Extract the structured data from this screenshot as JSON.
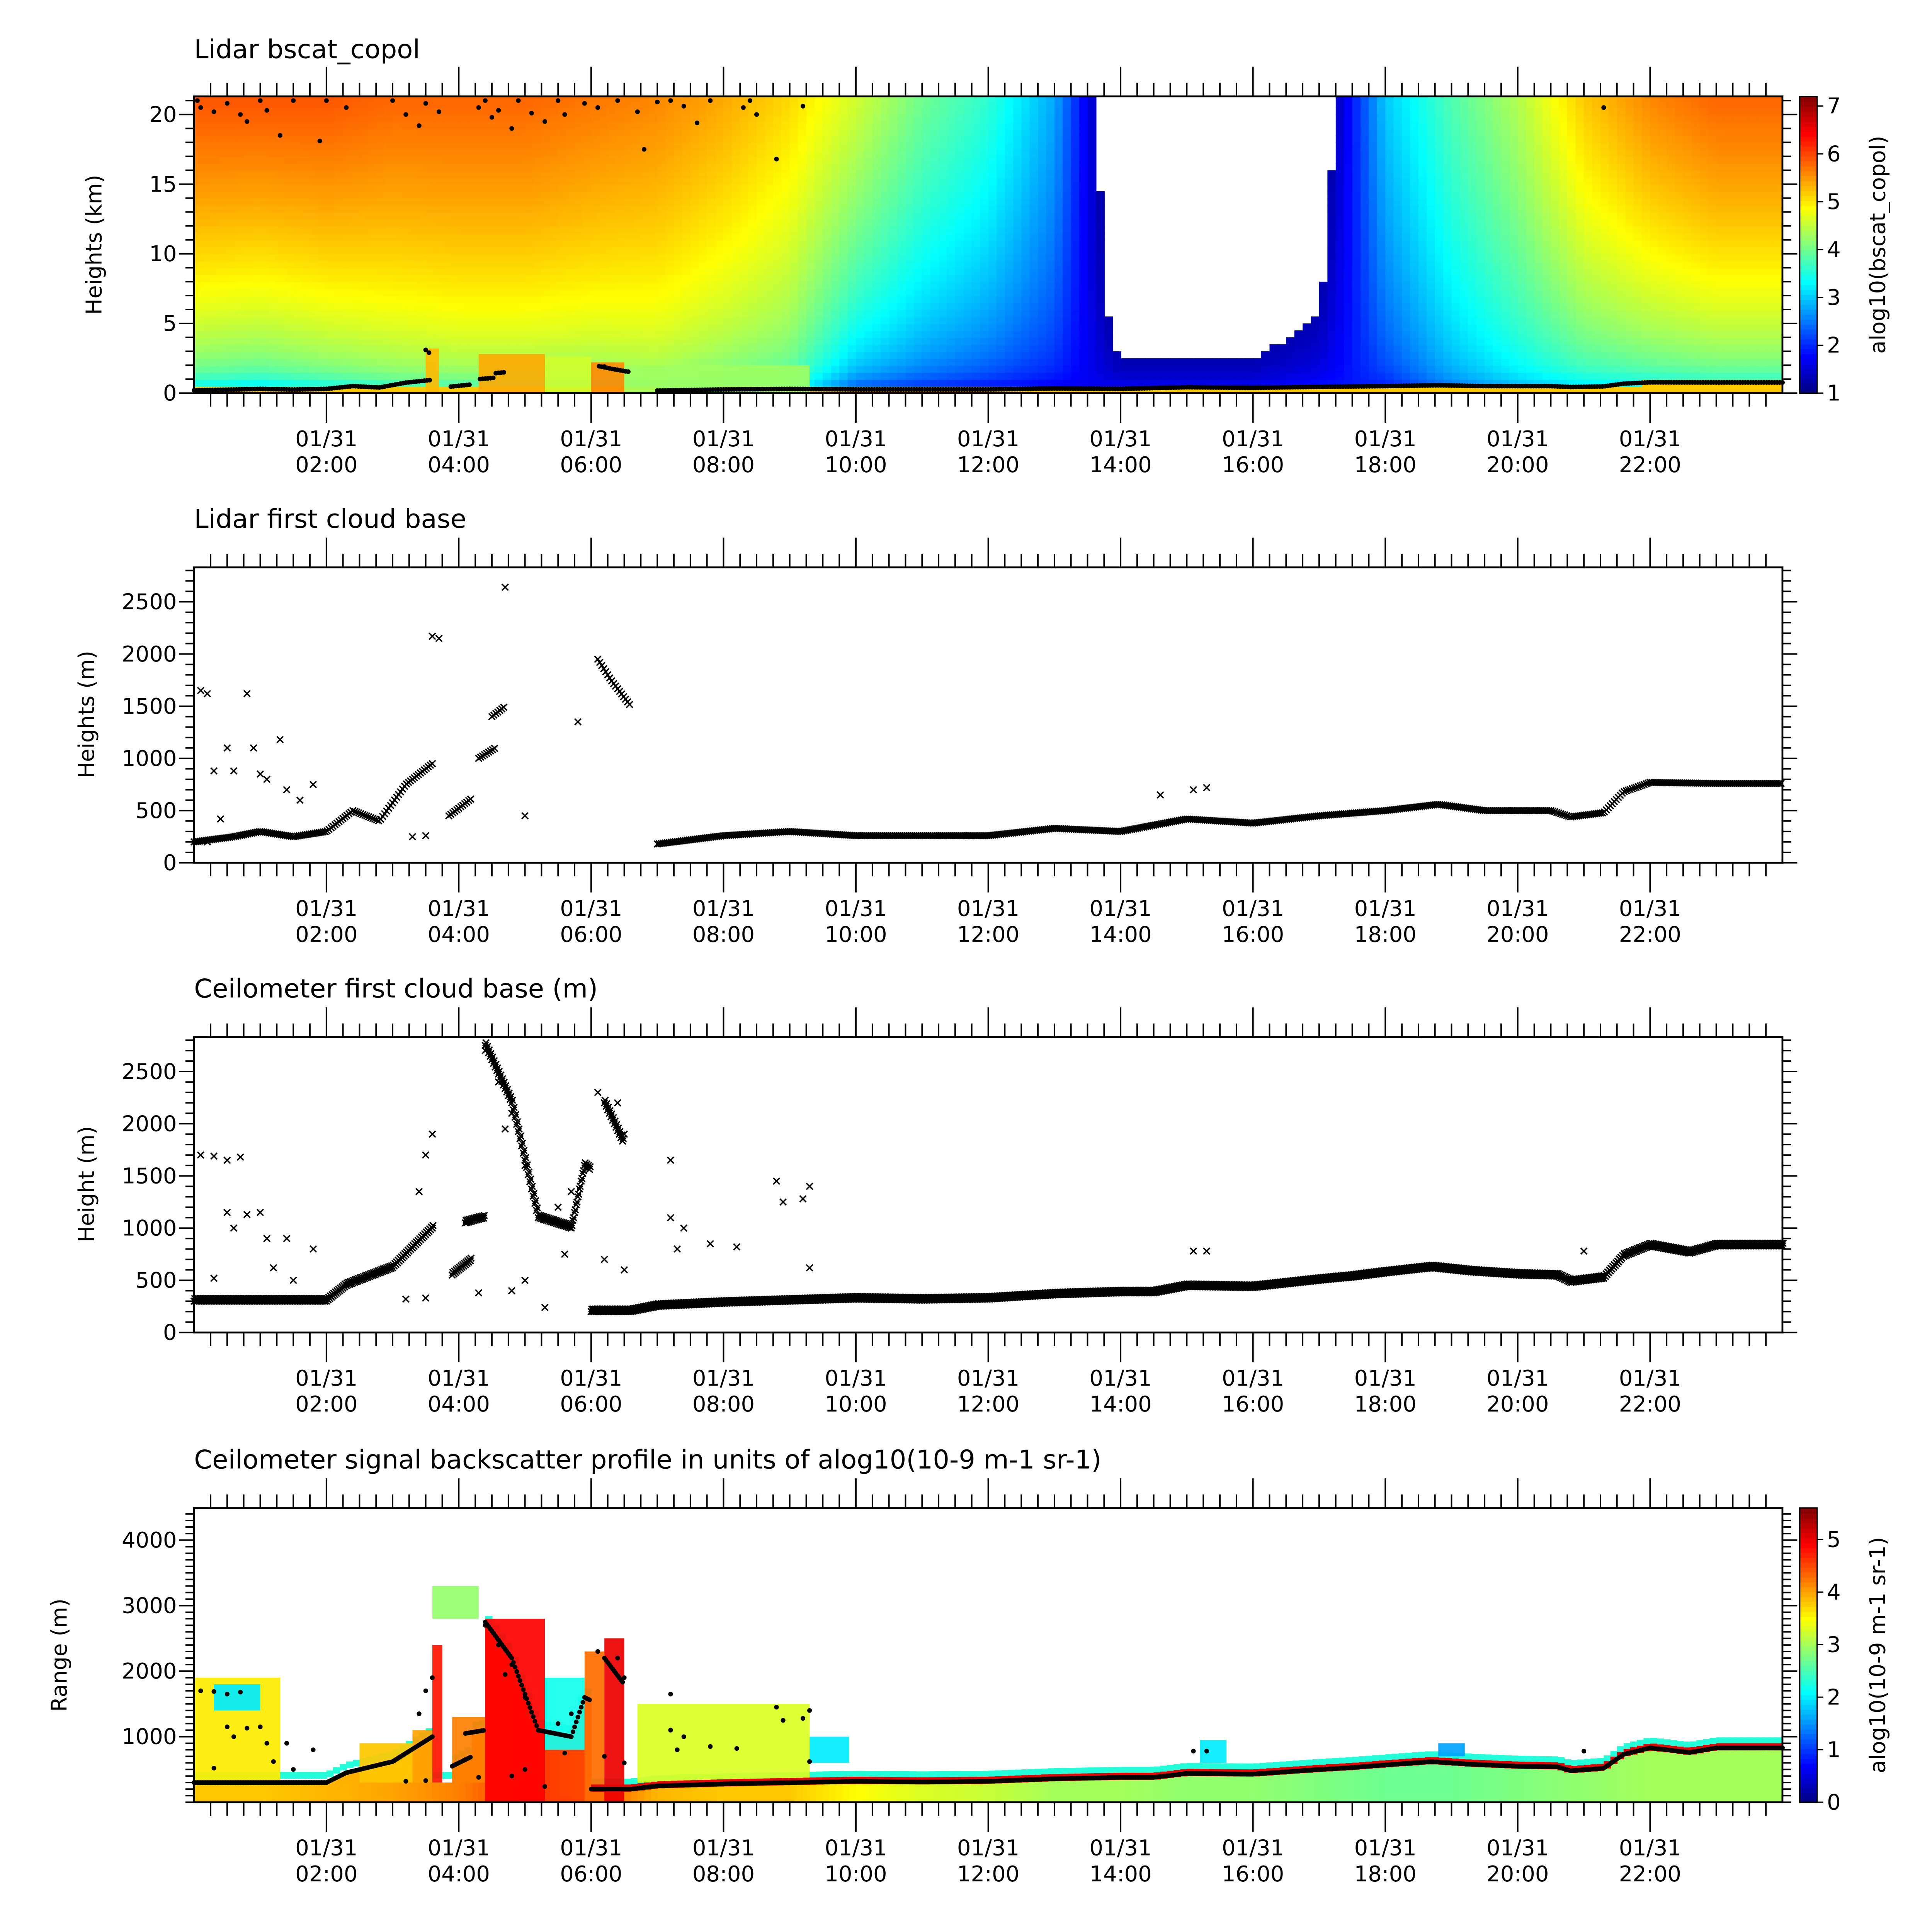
{
  "chart_data": [
    {
      "id": "lidar_bscat",
      "type": "heatmap",
      "title": "Lidar bscat_copol",
      "ylabel": "Heights (km)",
      "colorbar_label": "alog10(bscat_copol)",
      "colorbar_range": [
        1,
        7.2
      ],
      "colorbar_ticks": [
        1,
        2,
        3,
        4,
        5,
        6,
        7
      ],
      "colormap": "jet",
      "xlim_hours": [
        0,
        24
      ],
      "ylim": [
        0,
        21.3
      ],
      "y_major": [
        0,
        5,
        10,
        15,
        20
      ],
      "y_minor_step": 1,
      "x_tick_labels": [
        [
          "01/31",
          "02:00"
        ],
        [
          "01/31",
          "04:00"
        ],
        [
          "01/31",
          "06:00"
        ],
        [
          "01/31",
          "08:00"
        ],
        [
          "01/31",
          "10:00"
        ],
        [
          "01/31",
          "12:00"
        ],
        [
          "01/31",
          "14:00"
        ],
        [
          "01/31",
          "16:00"
        ],
        [
          "01/31",
          "18:00"
        ],
        [
          "01/31",
          "20:00"
        ],
        [
          "01/31",
          "22:00"
        ]
      ],
      "x_major_hours": [
        2,
        4,
        6,
        8,
        10,
        12,
        14,
        16,
        18,
        20,
        22
      ],
      "upper_value_by_hour": [
        5.9,
        5.9,
        5.9,
        5.8,
        5.8,
        5.8,
        5.7,
        5.6,
        5.4,
        5.1,
        4.6,
        4.0,
        3.6,
        2.8,
        0.5,
        0.5,
        0.5,
        0.8,
        3.0,
        3.8,
        4.4,
        5.2,
        5.6,
        5.8
      ],
      "lower_value_by_hour": [
        3.5,
        3.4,
        3.6,
        3.8,
        3.9,
        3.9,
        3.9,
        4.0,
        3.8,
        3.6,
        2.5,
        2.2,
        2.0,
        1.8,
        1.6,
        1.6,
        1.6,
        1.8,
        2.0,
        2.6,
        3.0,
        3.3,
        3.4,
        3.5
      ],
      "below_cloud_value": 5.2,
      "patches": [
        [
          3.5,
          3.7,
          0,
          3.2,
          5.3
        ],
        [
          4.3,
          5.3,
          0,
          2.8,
          5.4
        ],
        [
          5.3,
          6.0,
          0,
          2.6,
          4.6
        ],
        [
          6.0,
          6.5,
          0,
          2.2,
          5.6
        ],
        [
          6.5,
          9.3,
          0,
          2.0,
          4.3
        ]
      ],
      "dots_km": [
        [
          0.05,
          21
        ],
        [
          0.1,
          20.5
        ],
        [
          0.3,
          20.2
        ],
        [
          0.5,
          20.8
        ],
        [
          0.7,
          20.0
        ],
        [
          0.8,
          19.5
        ],
        [
          1.0,
          21
        ],
        [
          1.1,
          20.3
        ],
        [
          1.3,
          18.5
        ],
        [
          1.5,
          21
        ],
        [
          1.9,
          18.1
        ],
        [
          2.0,
          21
        ],
        [
          2.3,
          20.5
        ],
        [
          3.0,
          21
        ],
        [
          3.2,
          20.0
        ],
        [
          3.4,
          19.2
        ],
        [
          3.5,
          20.8
        ],
        [
          3.7,
          20.2
        ],
        [
          4.3,
          20.5
        ],
        [
          4.4,
          21
        ],
        [
          4.5,
          19.8
        ],
        [
          4.6,
          20.3
        ],
        [
          4.8,
          19.0
        ],
        [
          4.9,
          21
        ],
        [
          5.1,
          20.1
        ],
        [
          5.3,
          19.5
        ],
        [
          5.5,
          21
        ],
        [
          5.6,
          20.0
        ],
        [
          5.9,
          20.8
        ],
        [
          6.1,
          20.5
        ],
        [
          6.4,
          21
        ],
        [
          6.7,
          20.2
        ],
        [
          6.8,
          17.5
        ],
        [
          7.0,
          20.9
        ],
        [
          7.2,
          21
        ],
        [
          7.4,
          20.6
        ],
        [
          7.6,
          19.4
        ],
        [
          7.8,
          21
        ],
        [
          8.3,
          20.5
        ],
        [
          8.4,
          21
        ],
        [
          8.5,
          20.0
        ],
        [
          8.8,
          16.8
        ],
        [
          9.2,
          20.6
        ],
        [
          21.3,
          20.5
        ],
        [
          3.5,
          3.1
        ],
        [
          3.55,
          2.9
        ],
        [
          6.2,
          1.9
        ]
      ]
    },
    {
      "id": "lidar_cloud_base",
      "type": "scatter",
      "title": "Lidar first cloud base",
      "ylabel": "Heights (m)",
      "xlim_hours": [
        0,
        24
      ],
      "ylim": [
        0,
        2830
      ],
      "y_major": [
        0,
        500,
        1000,
        1500,
        2000,
        2500
      ],
      "y_minor_step": 100,
      "marker": "x",
      "segments": [
        [
          [
            0,
            200
          ],
          [
            0.6,
            250
          ],
          [
            1,
            300
          ],
          [
            1.5,
            250
          ],
          [
            2,
            300
          ],
          [
            2.4,
            500
          ],
          [
            2.8,
            400
          ],
          [
            3.2,
            750
          ],
          [
            3.6,
            950
          ]
        ],
        [
          [
            3.85,
            450
          ],
          [
            4.2,
            620
          ]
        ],
        [
          [
            4.3,
            1000
          ],
          [
            4.55,
            1100
          ]
        ],
        [
          [
            4.5,
            1400
          ],
          [
            4.7,
            1500
          ]
        ],
        [
          [
            6.1,
            1950
          ],
          [
            6.3,
            1750
          ],
          [
            6.6,
            1500
          ]
        ],
        [
          [
            7.0,
            180
          ],
          [
            8,
            260
          ],
          [
            9,
            300
          ],
          [
            10,
            260
          ],
          [
            12,
            260
          ],
          [
            13,
            330
          ],
          [
            14,
            300
          ],
          [
            15,
            420
          ],
          [
            16,
            380
          ],
          [
            17,
            450
          ],
          [
            18,
            500
          ],
          [
            18.8,
            560
          ],
          [
            19.5,
            500
          ],
          [
            20.5,
            500
          ],
          [
            20.8,
            440
          ],
          [
            21.3,
            480
          ],
          [
            21.6,
            680
          ],
          [
            22,
            770
          ],
          [
            23,
            760
          ],
          [
            24,
            760
          ]
        ]
      ],
      "points": [
        [
          0.1,
          1650
        ],
        [
          0.2,
          1620
        ],
        [
          0.3,
          880
        ],
        [
          0.5,
          1100
        ],
        [
          0.6,
          880
        ],
        [
          0.8,
          1620
        ],
        [
          0.9,
          1100
        ],
        [
          1.0,
          850
        ],
        [
          1.1,
          800
        ],
        [
          1.3,
          1180
        ],
        [
          1.4,
          700
        ],
        [
          1.6,
          600
        ],
        [
          1.8,
          750
        ],
        [
          0.2,
          200
        ],
        [
          0.4,
          420
        ],
        [
          3.6,
          2170
        ],
        [
          3.7,
          2150
        ],
        [
          4.7,
          2640
        ],
        [
          5.0,
          450
        ],
        [
          5.8,
          1350
        ],
        [
          14.6,
          650
        ],
        [
          15.1,
          700
        ],
        [
          15.3,
          720
        ],
        [
          3.3,
          250
        ],
        [
          3.5,
          260
        ]
      ]
    },
    {
      "id": "ceilometer_cloud_base",
      "type": "scatter",
      "title": "Ceilometer first cloud base (m)",
      "ylabel": "Height (m)",
      "xlim_hours": [
        0,
        24
      ],
      "ylim": [
        0,
        2830
      ],
      "y_major": [
        0,
        500,
        1000,
        1500,
        2000,
        2500
      ],
      "y_minor_step": 100,
      "marker": "x",
      "segments": [
        [
          [
            0,
            300
          ],
          [
            2,
            300
          ],
          [
            2.3,
            450
          ],
          [
            3,
            620
          ],
          [
            3.6,
            1000
          ]
        ],
        [
          [
            3.9,
            550
          ],
          [
            4.2,
            700
          ]
        ],
        [
          [
            4.1,
            1050
          ],
          [
            4.4,
            1100
          ]
        ],
        [
          [
            4.4,
            2750
          ],
          [
            4.8,
            2200
          ],
          [
            5.2,
            1100
          ],
          [
            5.7,
            1000
          ],
          [
            5.9,
            1600
          ],
          [
            6.0,
            1550
          ]
        ],
        [
          [
            6.2,
            2200
          ],
          [
            6.5,
            1800
          ]
        ],
        [
          [
            6.0,
            200
          ],
          [
            6.6,
            200
          ],
          [
            7,
            250
          ],
          [
            8,
            280
          ],
          [
            9,
            300
          ],
          [
            10,
            320
          ],
          [
            11,
            310
          ],
          [
            12,
            320
          ],
          [
            13,
            360
          ],
          [
            14,
            380
          ],
          [
            14.5,
            380
          ],
          [
            15,
            440
          ],
          [
            16,
            430
          ],
          [
            17,
            500
          ],
          [
            17.5,
            530
          ],
          [
            18,
            570
          ],
          [
            18.7,
            620
          ],
          [
            19.3,
            580
          ],
          [
            20,
            550
          ],
          [
            20.6,
            540
          ],
          [
            20.8,
            480
          ],
          [
            21.3,
            520
          ],
          [
            21.6,
            730
          ],
          [
            22,
            830
          ],
          [
            22.6,
            760
          ],
          [
            23,
            830
          ],
          [
            24,
            830
          ]
        ]
      ],
      "points": [
        [
          0.1,
          1700
        ],
        [
          0.3,
          1690
        ],
        [
          0.5,
          1650
        ],
        [
          0.7,
          1680
        ],
        [
          0.5,
          1150
        ],
        [
          0.8,
          1130
        ],
        [
          1.0,
          1150
        ],
        [
          0.6,
          1000
        ],
        [
          1.1,
          900
        ],
        [
          1.4,
          900
        ],
        [
          1.8,
          800
        ],
        [
          1.2,
          620
        ],
        [
          1.5,
          500
        ],
        [
          0.3,
          520
        ],
        [
          3.4,
          1350
        ],
        [
          3.5,
          1700
        ],
        [
          3.6,
          1900
        ],
        [
          3.5,
          330
        ],
        [
          3.2,
          320
        ],
        [
          4.4,
          2700
        ],
        [
          4.6,
          2400
        ],
        [
          4.8,
          2100
        ],
        [
          4.7,
          1950
        ],
        [
          5.0,
          1600
        ],
        [
          4.3,
          380
        ],
        [
          4.8,
          400
        ],
        [
          5.0,
          500
        ],
        [
          5.5,
          1200
        ],
        [
          5.7,
          1350
        ],
        [
          5.6,
          750
        ],
        [
          6.1,
          2300
        ],
        [
          6.4,
          2200
        ],
        [
          6.5,
          1900
        ],
        [
          6.2,
          700
        ],
        [
          6.5,
          600
        ],
        [
          7.2,
          1650
        ],
        [
          7.2,
          1100
        ],
        [
          7.4,
          1000
        ],
        [
          7.3,
          800
        ],
        [
          7.8,
          850
        ],
        [
          8.2,
          820
        ],
        [
          8.8,
          1450
        ],
        [
          8.9,
          1250
        ],
        [
          9.2,
          1280
        ],
        [
          9.3,
          1400
        ],
        [
          9.3,
          620
        ],
        [
          15.1,
          780
        ],
        [
          15.3,
          780
        ],
        [
          21.0,
          780
        ],
        [
          5.3,
          240
        ]
      ]
    },
    {
      "id": "ceilometer_backscatter",
      "type": "heatmap",
      "title": "Ceilometer signal backscatter profile in units of alog10(10-9 m-1 sr-1)",
      "ylabel": "Range (m)",
      "colorbar_label": "alog10(10-9 m-1 sr-1)",
      "colorbar_range": [
        0,
        5.6
      ],
      "colorbar_ticks": [
        0,
        1,
        2,
        3,
        4,
        5
      ],
      "colormap": "jet",
      "xlim_hours": [
        0,
        24
      ],
      "ylim": [
        0,
        4490
      ],
      "y_major": [
        1000,
        2000,
        3000,
        4000
      ],
      "y_minor_step": 100,
      "near_surface_by_hour": [
        3.8,
        3.8,
        3.9,
        4.0,
        4.2,
        4.6,
        4.5,
        3.9,
        3.8,
        3.8,
        3.5,
        3.3,
        3.2,
        3.0,
        3.0,
        2.9,
        2.9,
        2.8,
        2.7,
        2.7,
        2.8,
        2.9,
        3.0,
        3.0
      ],
      "cloud_band_value": 5.0,
      "above_cloud_value": 2.3,
      "patches": [
        [
          0,
          1.3,
          300,
          1900,
          3.6
        ],
        [
          0.3,
          1.0,
          1400,
          1800,
          2.0
        ],
        [
          2.5,
          3.3,
          300,
          900,
          3.8
        ],
        [
          3.3,
          3.6,
          300,
          1100,
          4.0
        ],
        [
          3.6,
          3.75,
          300,
          2400,
          4.8
        ],
        [
          3.6,
          4.3,
          2800,
          3300,
          2.9
        ],
        [
          3.9,
          4.4,
          300,
          1300,
          4.2
        ],
        [
          4.4,
          5.3,
          0,
          2800,
          4.9
        ],
        [
          5.3,
          5.9,
          800,
          1900,
          2.2
        ],
        [
          5.9,
          6.2,
          0,
          2300,
          4.3
        ],
        [
          6.2,
          6.5,
          0,
          2500,
          5.0
        ],
        [
          6.7,
          9.3,
          300,
          1500,
          3.3
        ],
        [
          9.3,
          9.9,
          600,
          1000,
          2.0
        ],
        [
          15.2,
          15.6,
          600,
          950,
          2.0
        ],
        [
          18.8,
          19.2,
          700,
          900,
          1.6
        ]
      ]
    }
  ]
}
